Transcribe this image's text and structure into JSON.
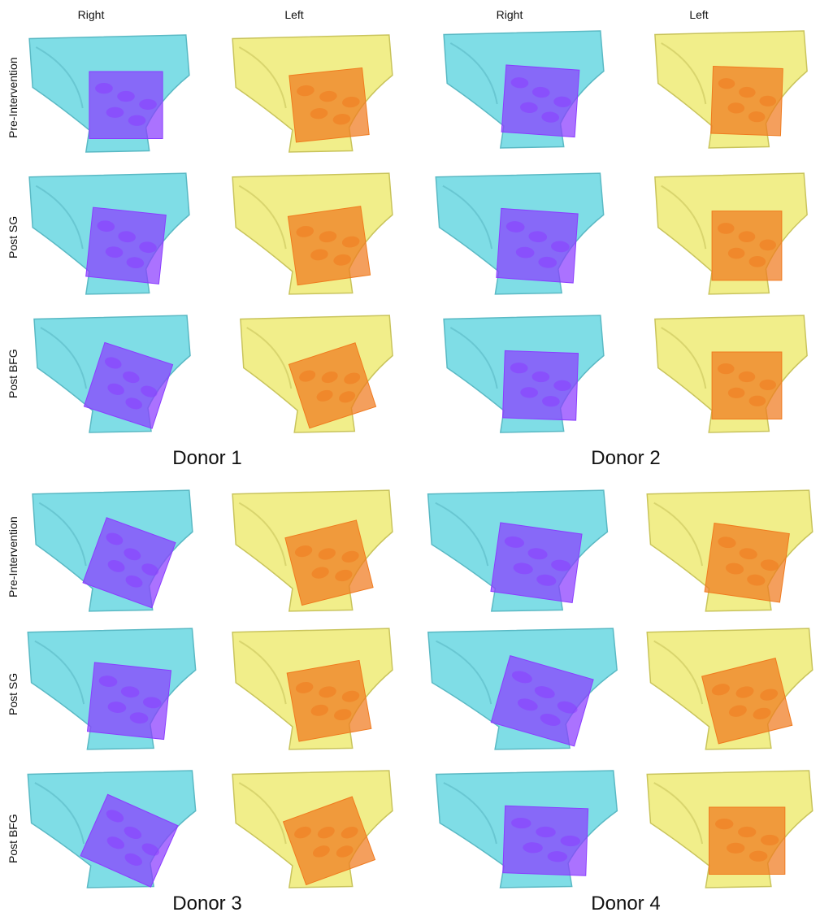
{
  "column_headers": [
    "Right",
    "Left",
    "Right",
    "Left"
  ],
  "row_labels": [
    "Pre-Intervention",
    "Post SG",
    "Post BFG",
    "Pre-Intervention",
    "Post SG",
    "Post BFG"
  ],
  "donor_labels": [
    "Donor 1",
    "Donor 2",
    "Donor 3",
    "Donor 4"
  ],
  "colors": {
    "right_bone": "#7fdde6",
    "right_bone_stroke": "#5ab9c4",
    "right_box": "#8a3cff",
    "left_bone": "#f1ee8a",
    "left_bone_stroke": "#c9c45c",
    "left_box": "#f07a1e"
  }
}
